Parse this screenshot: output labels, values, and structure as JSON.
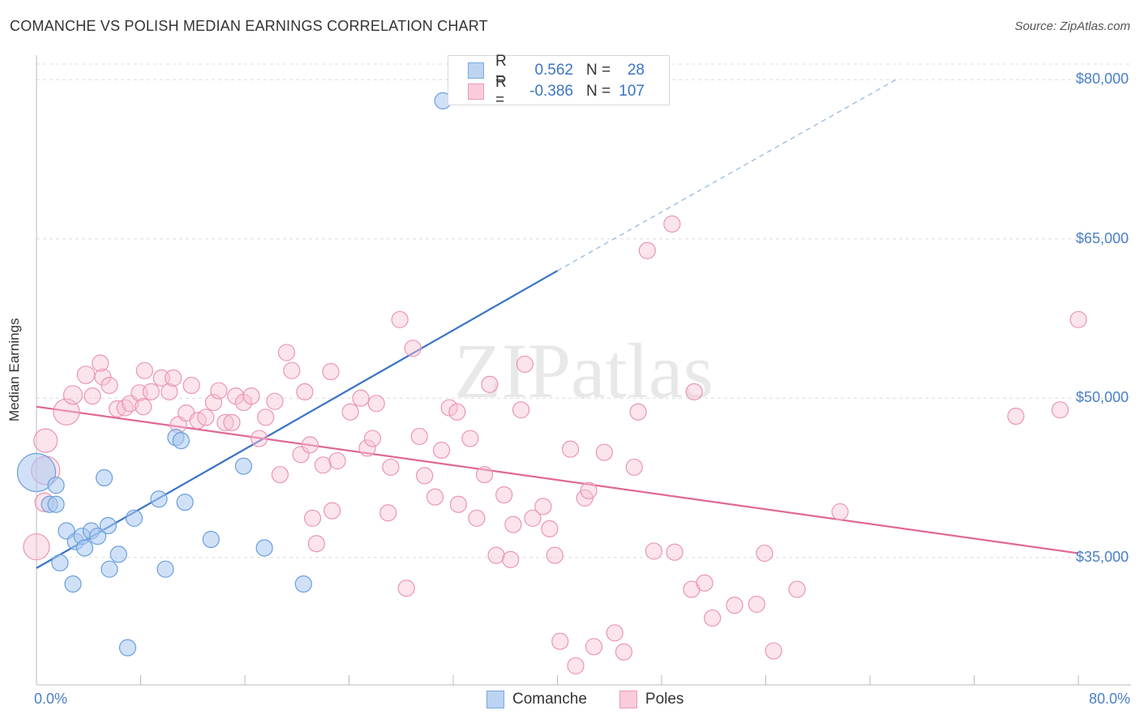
{
  "title": "COMANCHE VS POLISH MEDIAN EARNINGS CORRELATION CHART",
  "source": "Source: ZipAtlas.com",
  "watermark": "ZIPatlas",
  "colors": {
    "blue": "#3a74c6",
    "blue_fill": "#a9c8f0",
    "blue_stroke": "#6a9ede",
    "pink": "#e06896",
    "pink_fill": "#f7c3d4",
    "pink_stroke": "#ea95b3",
    "tick_text": "#4a7fc8",
    "grid": "#dddddd"
  },
  "legend_top": {
    "rows": [
      {
        "label": "R =",
        "r": "0.562",
        "n_label": "N =",
        "n": "28"
      },
      {
        "label": "R =",
        "r": "-0.386",
        "n_label": "N =",
        "n": "107"
      }
    ]
  },
  "legend_bottom": [
    "Comanche",
    "Poles"
  ],
  "chart_data": {
    "type": "scatter",
    "title": "COMANCHE VS POLISH MEDIAN EARNINGS CORRELATION CHART",
    "xlabel": "",
    "ylabel": "Median Earnings",
    "xlim": [
      0,
      80
    ],
    "ylim": [
      23000,
      82000
    ],
    "x_tick_labels": [
      "0.0%",
      "80.0%"
    ],
    "y_ticks": [
      35000,
      50000,
      65000,
      80000
    ],
    "y_tick_labels": [
      "$35,000",
      "$50,000",
      "$65,000",
      "$80,000"
    ],
    "series": [
      {
        "name": "Comanche",
        "r": 0.562,
        "n": 28,
        "trend": {
          "x0": 0,
          "y0": 34000,
          "x1": 40,
          "y1": 62000,
          "dashed_to_x": 66,
          "dashed_to_y": 80000
        },
        "points": [
          [
            0,
            43000,
            30
          ],
          [
            1,
            40000,
            12
          ],
          [
            1.5,
            40000,
            12
          ],
          [
            1.5,
            41800,
            12
          ],
          [
            2.3,
            37500,
            12
          ],
          [
            3,
            36500,
            12
          ],
          [
            3.5,
            37000,
            12
          ],
          [
            4.2,
            37500,
            12
          ],
          [
            4.7,
            37000,
            12
          ],
          [
            5.5,
            38000,
            12
          ],
          [
            1.8,
            34500,
            12
          ],
          [
            2.8,
            32500,
            12
          ],
          [
            3.7,
            35900,
            12
          ],
          [
            5.6,
            33900,
            12
          ],
          [
            6.3,
            35300,
            12
          ],
          [
            7.5,
            38700,
            12
          ],
          [
            5.2,
            42500,
            12
          ],
          [
            9.4,
            40500,
            12
          ],
          [
            10.7,
            46300,
            12
          ],
          [
            11.1,
            46000,
            12
          ],
          [
            11.4,
            40200,
            12
          ],
          [
            9.9,
            33900,
            12
          ],
          [
            13.4,
            36700,
            12
          ],
          [
            15.9,
            43600,
            12
          ],
          [
            17.5,
            35900,
            12
          ],
          [
            20.5,
            32500,
            12
          ],
          [
            7.0,
            26500,
            12
          ],
          [
            31.2,
            78000,
            12
          ]
        ]
      },
      {
        "name": "Poles",
        "r": -0.386,
        "n": 107,
        "trend": {
          "x0": 0,
          "y0": 49200,
          "x1": 80,
          "y1": 35400
        },
        "points": [
          [
            0.7,
            46000,
            18
          ],
          [
            0,
            36000,
            20
          ],
          [
            0.6,
            40200,
            14
          ],
          [
            0.7,
            43200,
            22
          ],
          [
            2.3,
            48700,
            20
          ],
          [
            2.8,
            50300,
            14
          ],
          [
            3.8,
            52200,
            13
          ],
          [
            4.3,
            50200,
            12
          ],
          [
            5.1,
            52000,
            12
          ],
          [
            5.6,
            51200,
            12
          ],
          [
            4.9,
            53300,
            12
          ],
          [
            6.2,
            49000,
            12
          ],
          [
            6.8,
            49100,
            12
          ],
          [
            7.2,
            49500,
            12
          ],
          [
            7.9,
            50500,
            12
          ],
          [
            8.2,
            49200,
            12
          ],
          [
            8.3,
            52600,
            12
          ],
          [
            8.8,
            50600,
            12
          ],
          [
            9.6,
            51900,
            12
          ],
          [
            10.2,
            50600,
            12
          ],
          [
            10.5,
            51900,
            12
          ],
          [
            10.9,
            47500,
            12
          ],
          [
            11.5,
            48600,
            12
          ],
          [
            11.9,
            51200,
            12
          ],
          [
            12.4,
            47900,
            12
          ],
          [
            13.0,
            48200,
            12
          ],
          [
            13.6,
            49600,
            12
          ],
          [
            14.0,
            50700,
            12
          ],
          [
            14.5,
            47700,
            12
          ],
          [
            15.0,
            47700,
            12
          ],
          [
            15.3,
            50200,
            12
          ],
          [
            15.9,
            49600,
            12
          ],
          [
            16.5,
            50200,
            12
          ],
          [
            17.1,
            46200,
            12
          ],
          [
            17.6,
            48200,
            12
          ],
          [
            18.3,
            49700,
            12
          ],
          [
            18.7,
            42800,
            12
          ],
          [
            19.2,
            54300,
            12
          ],
          [
            19.6,
            52600,
            12
          ],
          [
            20.3,
            44700,
            12
          ],
          [
            20.6,
            50600,
            12
          ],
          [
            21.0,
            45600,
            12
          ],
          [
            21.2,
            38700,
            12
          ],
          [
            21.5,
            36300,
            12
          ],
          [
            22.0,
            43700,
            12
          ],
          [
            22.6,
            52500,
            12
          ],
          [
            23.1,
            44100,
            12
          ],
          [
            22.7,
            39400,
            12
          ],
          [
            24.1,
            48700,
            12
          ],
          [
            24.9,
            50000,
            12
          ],
          [
            25.4,
            45300,
            12
          ],
          [
            25.8,
            46200,
            12
          ],
          [
            26.1,
            49500,
            12
          ],
          [
            27.2,
            43500,
            12
          ],
          [
            27.0,
            39200,
            12
          ],
          [
            27.9,
            57400,
            12
          ],
          [
            28.4,
            32100,
            12
          ],
          [
            28.9,
            54700,
            12
          ],
          [
            29.4,
            46400,
            12
          ],
          [
            29.8,
            42700,
            12
          ],
          [
            30.6,
            40700,
            12
          ],
          [
            31.1,
            45100,
            12
          ],
          [
            31.7,
            49100,
            12
          ],
          [
            32.3,
            48700,
            12
          ],
          [
            32.4,
            40000,
            12
          ],
          [
            33.3,
            46200,
            12
          ],
          [
            33.8,
            38700,
            12
          ],
          [
            34.4,
            42800,
            12
          ],
          [
            34.8,
            51300,
            12
          ],
          [
            35.3,
            35200,
            12
          ],
          [
            35.9,
            40900,
            12
          ],
          [
            36.6,
            38100,
            12
          ],
          [
            36.4,
            34800,
            12
          ],
          [
            37.2,
            48900,
            12
          ],
          [
            37.5,
            53200,
            12
          ],
          [
            38.1,
            38700,
            12
          ],
          [
            38.9,
            39800,
            12
          ],
          [
            39.4,
            37700,
            12
          ],
          [
            39.8,
            35200,
            12
          ],
          [
            40.2,
            27100,
            12
          ],
          [
            41.0,
            45200,
            12
          ],
          [
            41.4,
            24800,
            12
          ],
          [
            42.1,
            40600,
            12
          ],
          [
            42.4,
            41300,
            12
          ],
          [
            42.8,
            26600,
            12
          ],
          [
            43.6,
            44900,
            12
          ],
          [
            44.4,
            27900,
            12
          ],
          [
            45.1,
            26100,
            12
          ],
          [
            45.9,
            43500,
            12
          ],
          [
            46.2,
            48700,
            12
          ],
          [
            46.9,
            63900,
            12
          ],
          [
            47.4,
            35600,
            12
          ],
          [
            48.8,
            66400,
            12
          ],
          [
            49.0,
            35500,
            12
          ],
          [
            50.3,
            32000,
            12
          ],
          [
            50.5,
            50600,
            12
          ],
          [
            51.3,
            32600,
            12
          ],
          [
            51.9,
            29300,
            12
          ],
          [
            53.6,
            30500,
            12
          ],
          [
            55.3,
            30600,
            12
          ],
          [
            55.9,
            35400,
            12
          ],
          [
            56.6,
            26200,
            12
          ],
          [
            58.4,
            32000,
            12
          ],
          [
            61.7,
            39300,
            12
          ],
          [
            75.2,
            48300,
            12
          ],
          [
            78.6,
            48900,
            12
          ],
          [
            80.0,
            57400,
            12
          ]
        ]
      }
    ]
  }
}
